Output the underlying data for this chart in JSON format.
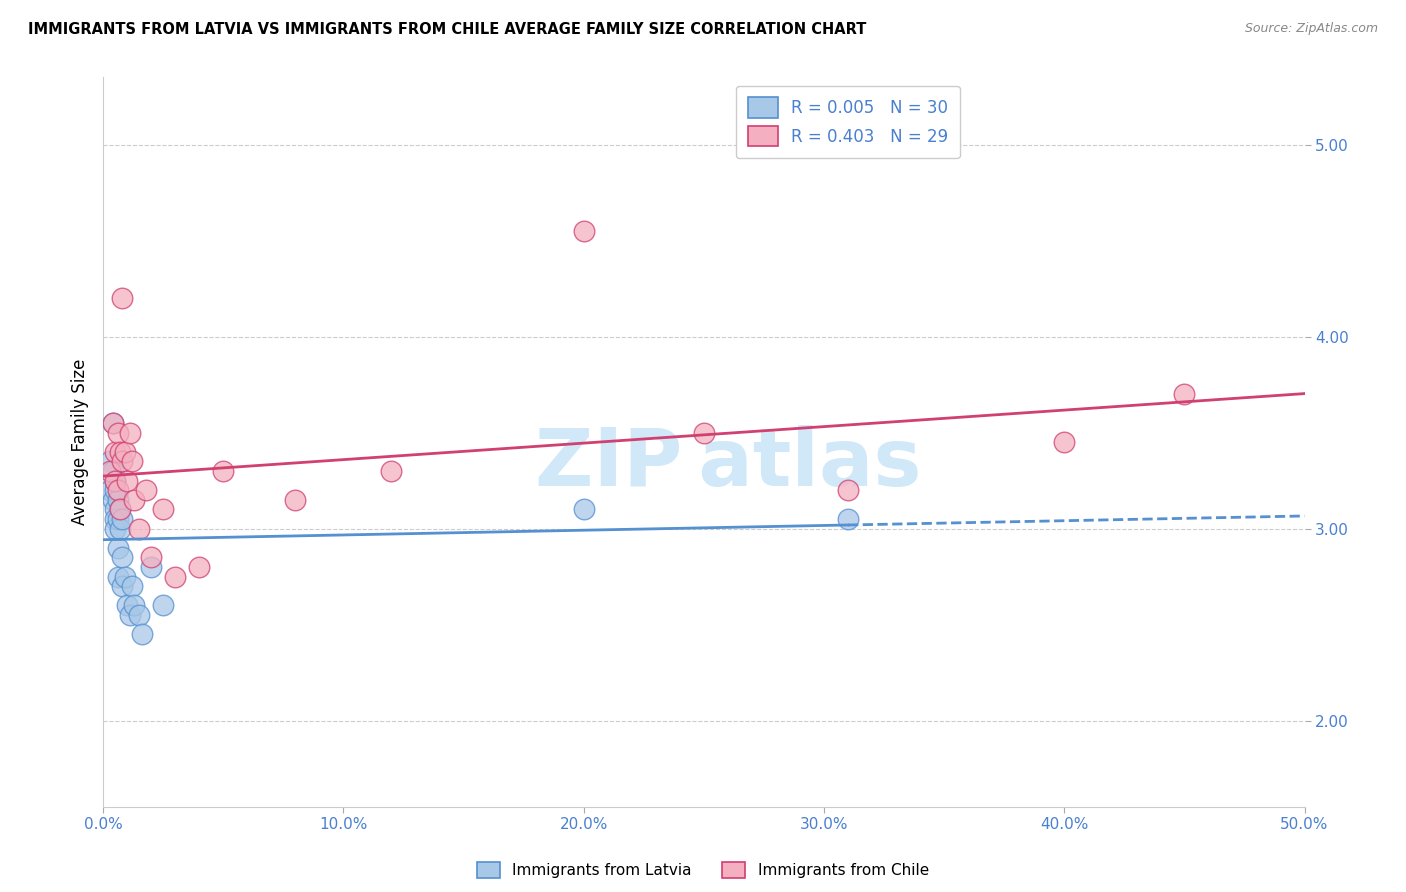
{
  "title": "IMMIGRANTS FROM LATVIA VS IMMIGRANTS FROM CHILE AVERAGE FAMILY SIZE CORRELATION CHART",
  "source": "Source: ZipAtlas.com",
  "ylabel": "Average Family Size",
  "xlabel_ticks": [
    "0.0%",
    "10.0%",
    "20.0%",
    "30.0%",
    "40.0%",
    "50.0%"
  ],
  "xlabel_vals": [
    0.0,
    0.1,
    0.2,
    0.3,
    0.4,
    0.5
  ],
  "ylabel_ticks": [
    "2.00",
    "3.00",
    "4.00",
    "5.00"
  ],
  "ylabel_vals": [
    2.0,
    3.0,
    4.0,
    5.0
  ],
  "xlim": [
    0.0,
    0.5
  ],
  "ylim": [
    1.55,
    5.35
  ],
  "legend_label1": "Immigrants from Latvia",
  "legend_label2": "Immigrants from Chile",
  "R1": "0.005",
  "N1": "30",
  "R2": "0.403",
  "N2": "29",
  "color_latvia": "#a8c8e8",
  "color_chile": "#f4b0c0",
  "line_color_latvia": "#5590d0",
  "line_color_chile": "#d04070",
  "watermark_color": "#d0e8f8",
  "latvia_x": [
    0.003,
    0.003,
    0.004,
    0.004,
    0.004,
    0.005,
    0.005,
    0.005,
    0.005,
    0.005,
    0.006,
    0.006,
    0.006,
    0.006,
    0.007,
    0.007,
    0.008,
    0.008,
    0.008,
    0.009,
    0.01,
    0.011,
    0.012,
    0.013,
    0.015,
    0.016,
    0.02,
    0.025,
    0.2,
    0.31
  ],
  "latvia_y": [
    3.35,
    3.2,
    3.55,
    3.3,
    3.15,
    3.25,
    3.2,
    3.1,
    3.05,
    3.0,
    3.15,
    3.05,
    2.9,
    2.75,
    3.1,
    3.0,
    3.05,
    2.85,
    2.7,
    2.75,
    2.6,
    2.55,
    2.7,
    2.6,
    2.55,
    2.45,
    2.8,
    2.6,
    3.1,
    3.05
  ],
  "chile_x": [
    0.003,
    0.004,
    0.005,
    0.005,
    0.006,
    0.006,
    0.007,
    0.007,
    0.008,
    0.008,
    0.009,
    0.01,
    0.011,
    0.012,
    0.013,
    0.015,
    0.018,
    0.02,
    0.025,
    0.03,
    0.04,
    0.05,
    0.08,
    0.12,
    0.2,
    0.25,
    0.31,
    0.4,
    0.45
  ],
  "chile_y": [
    3.3,
    3.55,
    3.4,
    3.25,
    3.5,
    3.2,
    3.4,
    3.1,
    4.2,
    3.35,
    3.4,
    3.25,
    3.5,
    3.35,
    3.15,
    3.0,
    3.2,
    2.85,
    3.1,
    2.75,
    2.8,
    3.3,
    3.15,
    3.3,
    4.55,
    3.5,
    3.2,
    3.45,
    3.7
  ]
}
